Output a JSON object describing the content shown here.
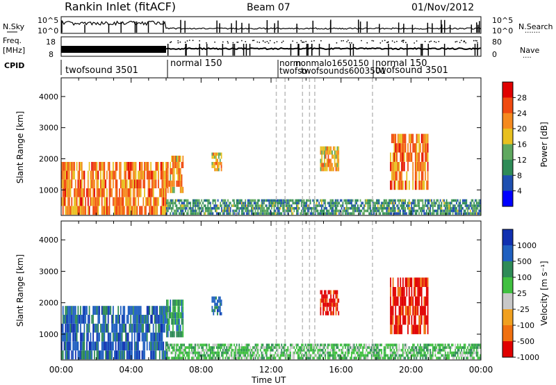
{
  "header": {
    "site": "Rankin Inlet (fitACF)",
    "beam": "Beam 07",
    "date": "01/Nov/2012"
  },
  "noise_panel": {
    "left_label": "N.Sky",
    "right_label": "N.Search",
    "left_ticks": [
      "10^5",
      "10^0"
    ],
    "right_ticks": [
      "10^5",
      "10^0"
    ]
  },
  "freq_panel": {
    "left_label_1": "Freq.",
    "left_label_2": "[MHz]",
    "right_label": "Nave",
    "left_ticks": [
      "18",
      "8"
    ],
    "right_ticks": [
      "80",
      "0"
    ]
  },
  "cpid_panel": {
    "label": "CPID",
    "entries": [
      {
        "text": "twofsound 3501",
        "t": 0.2
      },
      {
        "text": "normal 150",
        "t": 6.05
      },
      {
        "text": "norm",
        "t": 12.3,
        "row": 0
      },
      {
        "text": "twofso",
        "t": 12.3,
        "row": 1
      },
      {
        "text": "normal 150",
        "t": 19.2
      },
      {
        "text": "twofsound 3501",
        "t": 19.2,
        "row": 1
      }
    ],
    "overlap_text": "nonmalo1650150",
    "overlap_text_2": "twofsounds6003501"
  },
  "x_axis": {
    "label": "Time UT",
    "ticks": [
      "00:00",
      "04:00",
      "08:00",
      "12:00",
      "16:00",
      "20:00",
      "00:00"
    ]
  },
  "power_panel": {
    "ylabel": "Slant Range [km]",
    "yticks": [
      "1000",
      "2000",
      "3000",
      "4000"
    ],
    "colorbar_label": "Power [dB]",
    "colorbar_ticks": [
      "4",
      "8",
      "12",
      "16",
      "20",
      "24",
      "28"
    ],
    "colors": [
      "#0000ff",
      "#1e4fb0",
      "#2e8b57",
      "#5fa85f",
      "#e8c020",
      "#f58a1f",
      "#f04a10",
      "#e00000"
    ]
  },
  "velocity_panel": {
    "ylabel": "Slant Range [km]",
    "yticks": [
      "1000",
      "2000",
      "3000",
      "4000"
    ],
    "colorbar_label": "Velocity  [m s⁻¹]",
    "colorbar_ticks": [
      "1000",
      "500",
      "100",
      "25",
      "-25",
      "-100",
      "-500",
      "-1000"
    ],
    "colors": [
      "#1030b0",
      "#2060c0",
      "#2e8b57",
      "#40c040",
      "#c8c8c8",
      "#f0a020",
      "#f07010",
      "#e00000"
    ]
  },
  "chart_data": {
    "type": "heatmap",
    "title": "Rankin Inlet (fitACF)",
    "subtitle": "Beam 07",
    "date": "01/Nov/2012",
    "xlabel": "Time UT",
    "xlim_hours": [
      0,
      24
    ],
    "ylabel": "Slant Range [km]",
    "ylim_km": [
      180,
      4600
    ],
    "power_scale_db": [
      0,
      32
    ],
    "velocity_scale_ms": [
      -1000,
      1000
    ],
    "cpid_modes": [
      {
        "name": "twofsound 3501",
        "start_hour": 0,
        "end_hour": 6
      },
      {
        "name": "normal 150",
        "start_hour": 6,
        "end_hour": 12.3
      },
      {
        "name": "twofsound 3501 / normal 150 (alternating)",
        "start_hour": 12.3,
        "end_hour": 19.2
      },
      {
        "name": "normal 150 / twofsound 3501",
        "start_hour": 19.2,
        "end_hour": 24
      }
    ],
    "mode_switch_hours": [
      12.3,
      12.8,
      13.8,
      14.2,
      14.5,
      17.8
    ],
    "echo_regions": [
      {
        "t_start": 0.0,
        "t_end": 6.1,
        "range_start": 200,
        "range_end": 1900,
        "power_db": 24,
        "velocity": 500
      },
      {
        "t_start": 6.0,
        "t_end": 7.0,
        "range_start": 900,
        "range_end": 2100,
        "power_db": 22,
        "velocity": 100
      },
      {
        "t_start": 8.6,
        "t_end": 9.2,
        "range_start": 1600,
        "range_end": 2200,
        "power_db": 20,
        "velocity": 500
      },
      {
        "t_start": 14.8,
        "t_end": 15.9,
        "range_start": 1600,
        "range_end": 2400,
        "power_db": 20,
        "velocity": -500
      },
      {
        "t_start": 18.8,
        "t_end": 21.0,
        "range_start": 1000,
        "range_end": 2800,
        "power_db": 24,
        "velocity": -1000
      },
      {
        "t_start": 6.0,
        "t_end": 24.0,
        "range_start": 200,
        "range_end": 700,
        "power_db": 10,
        "velocity": 25
      }
    ]
  }
}
